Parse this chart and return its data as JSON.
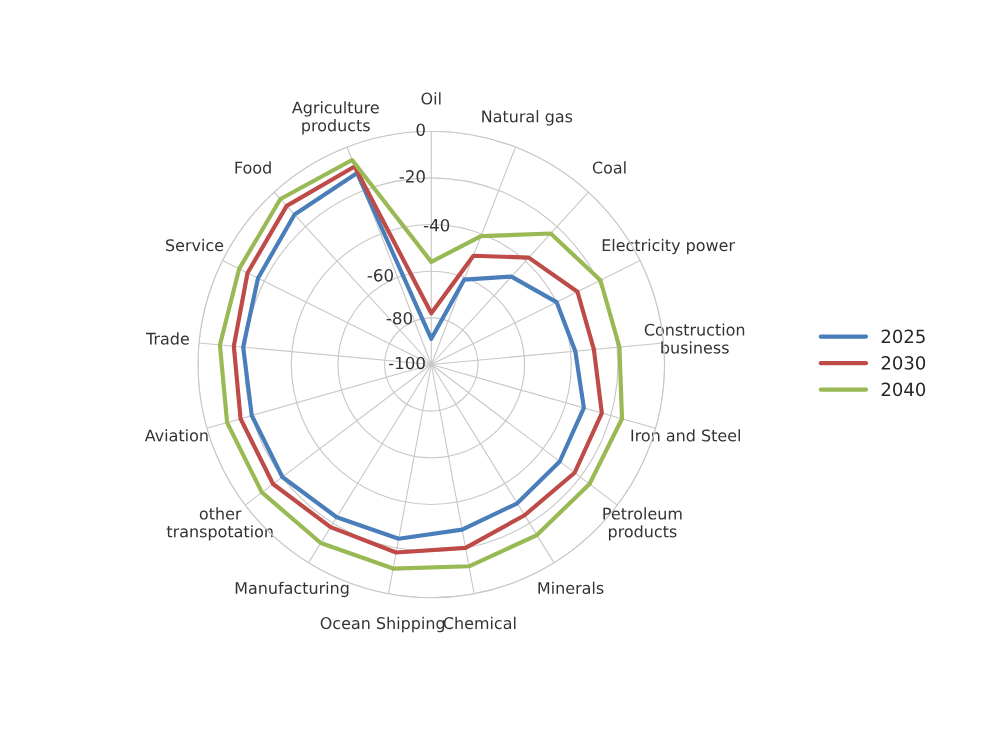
{
  "chart_data": {
    "type": "radar",
    "categories": [
      "Oil",
      "Natural gas",
      "Coal",
      "Electricity power",
      "Construction\nbusiness",
      "Iron and Steel",
      "Petroleum\nproducts",
      "Minerals",
      "Chemical",
      "Ocean Shipping",
      "Manufacturing",
      "other\ntranspotation",
      "Aviation",
      "Trade",
      "Service",
      "Food",
      "Agriculture\nproducts"
    ],
    "series": [
      {
        "name": "2025",
        "color": "#4a7ebb",
        "values": [
          -89,
          -61,
          -49,
          -40,
          -38,
          -32,
          -31,
          -30,
          -28,
          -24,
          -23,
          -20,
          -20,
          -19,
          -17,
          -13,
          -12
        ]
      },
      {
        "name": "2030",
        "color": "#be4b48",
        "values": [
          -78,
          -50,
          -38,
          -30,
          -30,
          -24,
          -23,
          -24,
          -20,
          -18,
          -18,
          -15,
          -15,
          -15,
          -12,
          -8,
          -9
        ]
      },
      {
        "name": "2040",
        "color": "#98b954",
        "values": [
          -56,
          -41,
          -24,
          -19,
          -19,
          -15,
          -15,
          -14,
          -12,
          -11,
          -10,
          -9,
          -9,
          -9,
          -8,
          -4,
          -6
        ]
      }
    ],
    "ylim": [
      -100,
      0
    ],
    "yticks": [
      -100,
      -80,
      -60,
      -40,
      -20,
      0
    ],
    "grid": true,
    "legend": "right"
  }
}
